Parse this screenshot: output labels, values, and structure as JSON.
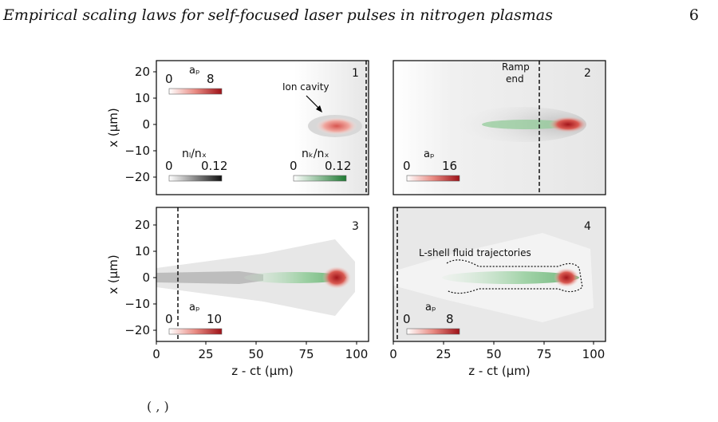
{
  "page": {
    "running_title": "Empirical scaling laws for self-focused laser pulses in nitrogen plasmas",
    "page_number": "6",
    "caption_fragment": "( , )"
  },
  "colors": {
    "laser_red": "#b41e22",
    "l_shell_gray": "#1a1a1a",
    "k_shell_green": "#2e8b3e",
    "background_gray": "#ececec"
  },
  "figure": {
    "xlabel": "z - ct (µm)",
    "ylabel": "x (µm)",
    "xticks": [
      "0",
      "25",
      "50",
      "75",
      "100"
    ],
    "yticks": [
      "20",
      "10",
      "0",
      "−10",
      "−20"
    ],
    "panels": [
      {
        "label": "1",
        "annotations": [
          "Ion cavity"
        ],
        "colorbars": [
          {
            "title": "aₚ",
            "min": "0",
            "max": "8",
            "map": "red"
          },
          {
            "title": "nₗ/nₓ",
            "min": "0",
            "max": "0.12",
            "map": "gray"
          },
          {
            "title": "nₖ/nₓ",
            "min": "0",
            "max": "0.12",
            "map": "green"
          }
        ]
      },
      {
        "label": "2",
        "annotations": [
          "Ramp",
          "end"
        ],
        "colorbars": [
          {
            "title": "aₚ",
            "min": "0",
            "max": "16",
            "map": "red"
          }
        ]
      },
      {
        "label": "3",
        "annotations": [],
        "colorbars": [
          {
            "title": "aₚ",
            "min": "0",
            "max": "10",
            "map": "red"
          }
        ]
      },
      {
        "label": "4",
        "annotations": [
          "L-shell fluid trajectories"
        ],
        "colorbars": [
          {
            "title": "aₚ",
            "min": "0",
            "max": "8",
            "map": "red"
          }
        ]
      }
    ]
  }
}
